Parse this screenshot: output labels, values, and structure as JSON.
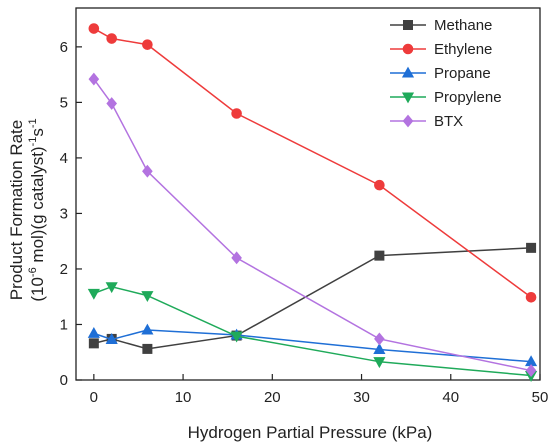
{
  "chart_data": {
    "type": "line",
    "xlabel": "Hydrogen Partial Pressure (kPa)",
    "ylabel_line1": "Product Formation Rate",
    "ylabel_line2_prefix": "(10",
    "ylabel_line2_sup1": "-6",
    "ylabel_line2_mid": " mol)(g catalyst)",
    "ylabel_line2_sup2": "-1",
    "ylabel_line2_s": "s",
    "ylabel_line2_sup3": "-1",
    "xlim": [
      -2,
      50
    ],
    "ylim": [
      0,
      6.7
    ],
    "xticks": [
      0,
      10,
      20,
      30,
      40,
      50
    ],
    "yticks": [
      0,
      1,
      2,
      3,
      4,
      5,
      6
    ],
    "legend_position": "top-right",
    "series": [
      {
        "name": "Methane",
        "color": "#404040",
        "marker": "square",
        "x": [
          0,
          2,
          6,
          16,
          32,
          49
        ],
        "y": [
          0.66,
          0.74,
          0.56,
          0.8,
          2.24,
          2.38
        ]
      },
      {
        "name": "Ethylene",
        "color": "#ee3b3b",
        "marker": "circle",
        "x": [
          0,
          2,
          6,
          16,
          32,
          49
        ],
        "y": [
          6.33,
          6.15,
          6.04,
          4.8,
          3.51,
          1.49
        ]
      },
      {
        "name": "Propane",
        "color": "#1f6fd6",
        "marker": "triangle-up",
        "x": [
          0,
          2,
          6,
          16,
          32,
          49
        ],
        "y": [
          0.84,
          0.73,
          0.9,
          0.81,
          0.55,
          0.33
        ]
      },
      {
        "name": "Propylene",
        "color": "#1faa5a",
        "marker": "triangle-down",
        "x": [
          0,
          2,
          6,
          16,
          32,
          49
        ],
        "y": [
          1.56,
          1.68,
          1.52,
          0.79,
          0.33,
          0.08
        ]
      },
      {
        "name": "BTX",
        "color": "#b373e0",
        "marker": "diamond",
        "x": [
          0,
          2,
          6,
          16,
          32,
          49
        ],
        "y": [
          5.42,
          4.98,
          3.76,
          2.2,
          0.74,
          0.17
        ]
      }
    ]
  }
}
